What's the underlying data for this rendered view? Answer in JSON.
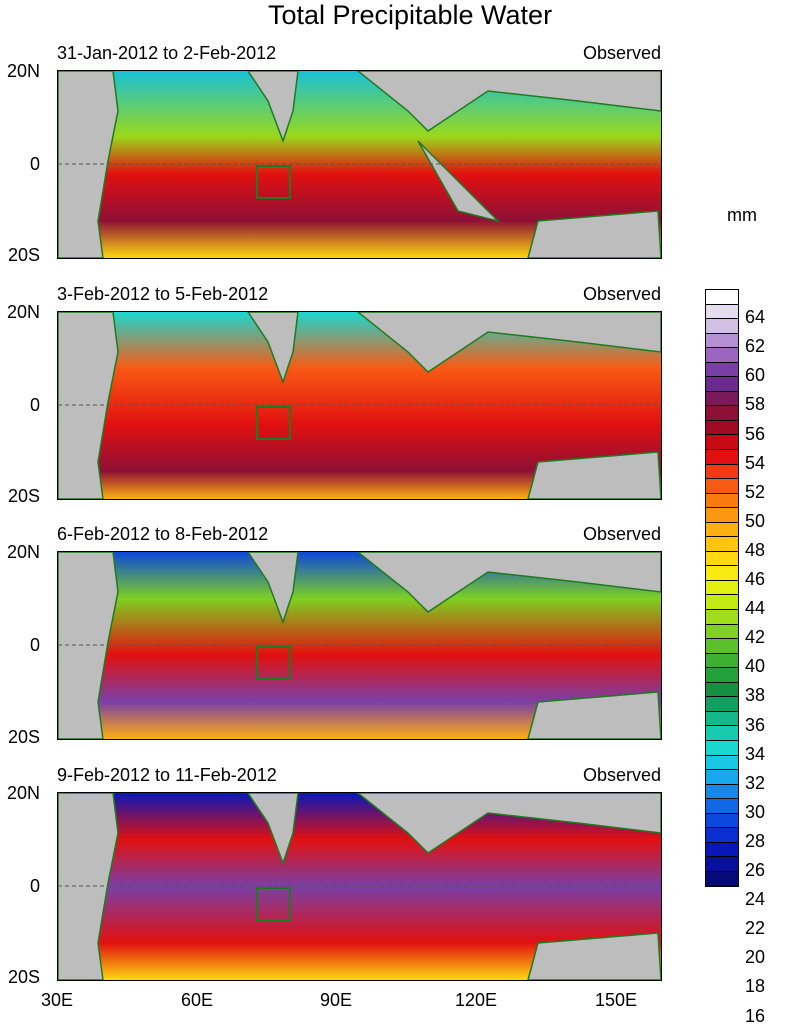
{
  "title": "Total Precipitable Water",
  "panels": [
    {
      "date_range": "31-Jan-2012 to 2-Feb-2012",
      "tag": "Observed"
    },
    {
      "date_range": "3-Feb-2012 to 5-Feb-2012",
      "tag": "Observed"
    },
    {
      "date_range": "6-Feb-2012 to 8-Feb-2012",
      "tag": "Observed"
    },
    {
      "date_range": "9-Feb-2012 to 11-Feb-2012",
      "tag": "Observed"
    }
  ],
  "lat_labels": [
    "20N",
    "0",
    "20S"
  ],
  "lon_labels": [
    "30E",
    "60E",
    "90E",
    "120E",
    "150E"
  ],
  "colorbar": {
    "unit": "mm",
    "labels": [
      "64",
      "62",
      "60",
      "58",
      "56",
      "54",
      "52",
      "50",
      "48",
      "46",
      "44",
      "42",
      "40",
      "38",
      "36",
      "34",
      "32",
      "30",
      "28",
      "26",
      "24",
      "22",
      "20",
      "18",
      "16"
    ],
    "colors": [
      "#ffffff",
      "#e6dcf0",
      "#d2bfe4",
      "#b68fd2",
      "#9a66be",
      "#7a3fa6",
      "#6a2a8e",
      "#7a1a5a",
      "#8e1036",
      "#a00a22",
      "#c80a14",
      "#e21010",
      "#f23a14",
      "#f85a14",
      "#fb7a10",
      "#fd9610",
      "#feb010",
      "#fec410",
      "#fed810",
      "#f8ea10",
      "#e2f010",
      "#c4ea14",
      "#a0de1a",
      "#7ed022",
      "#5cc02c",
      "#3cb032",
      "#24a03a",
      "#149040",
      "#10a060",
      "#14b88a",
      "#18cab0",
      "#1ad8d0",
      "#1ac8e6",
      "#18a8ee",
      "#1488ec",
      "#1068e6",
      "#0c48dc",
      "#0a2ed0",
      "#0818b8",
      "#06109a",
      "#040a78"
    ]
  }
}
